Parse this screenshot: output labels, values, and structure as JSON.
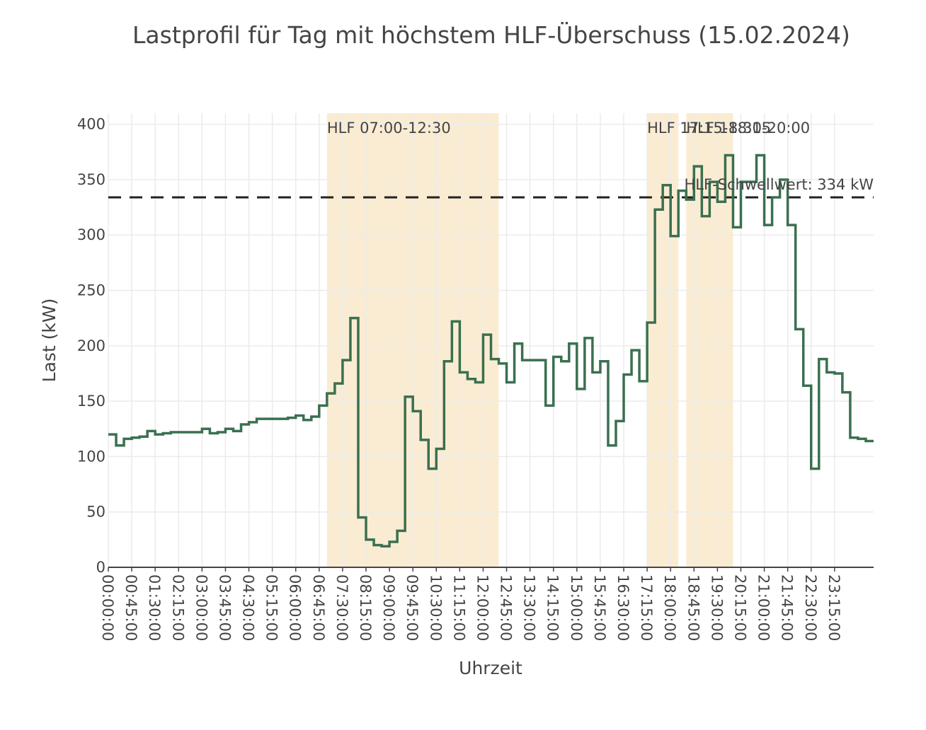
{
  "chart_data": {
    "type": "line",
    "step": "hv",
    "title": "Lastprofil für Tag mit höchstem HLF-Überschuss (15.02.2024)",
    "xlabel": "Uhrzeit",
    "ylabel": "Last (kW)",
    "ylim": [
      0,
      410
    ],
    "yticks": [
      0,
      50,
      100,
      150,
      200,
      250,
      300,
      350,
      400
    ],
    "xticks": [
      "00:00:00",
      "00:45:00",
      "01:30:00",
      "02:15:00",
      "03:00:00",
      "03:45:00",
      "04:30:00",
      "05:15:00",
      "06:00:00",
      "06:45:00",
      "07:30:00",
      "08:15:00",
      "09:00:00",
      "09:45:00",
      "10:30:00",
      "11:15:00",
      "12:00:00",
      "12:45:00",
      "13:30:00",
      "14:15:00",
      "15:00:00",
      "15:45:00",
      "16:30:00",
      "17:15:00",
      "18:00:00",
      "18:45:00",
      "19:30:00",
      "20:15:00",
      "21:00:00",
      "21:45:00",
      "22:30:00",
      "23:15:00"
    ],
    "x_interval": "15min",
    "grid": true,
    "line_color": "#3a7050",
    "threshold": {
      "value": 334,
      "label": "HLF-Schwellwert: 334 kW",
      "color": "#222222",
      "dash": "dashed"
    },
    "hlf_windows": [
      {
        "label": "HLF 07:00-12:30",
        "start": "07:00",
        "end": "12:30"
      },
      {
        "label": "HLF 17:15-18:15",
        "start": "17:15",
        "end": "18:15"
      },
      {
        "label": "HLF 18:30-20:00",
        "start": "18:30",
        "end": "20:00"
      }
    ],
    "window_color": "#faecd2",
    "values": [
      120,
      110,
      116,
      117,
      118,
      123,
      120,
      121,
      122,
      122,
      122,
      122,
      125,
      121,
      122,
      125,
      123,
      129,
      131,
      134,
      134,
      134,
      134,
      135,
      137,
      133,
      136,
      146,
      157,
      166,
      187,
      225,
      45,
      25,
      20,
      19,
      23,
      33,
      154,
      141,
      115,
      89,
      107,
      186,
      222,
      176,
      170,
      167,
      210,
      188,
      184,
      167,
      202,
      187,
      187,
      187,
      146,
      190,
      186,
      202,
      161,
      207,
      176,
      186,
      110,
      132,
      174,
      196,
      168,
      221,
      323,
      345,
      299,
      340,
      332,
      362,
      317,
      348,
      330,
      372,
      307,
      348,
      348,
      372,
      309,
      334,
      350,
      309,
      215,
      164,
      89,
      188,
      176,
      175,
      158,
      117,
      116,
      114
    ]
  }
}
